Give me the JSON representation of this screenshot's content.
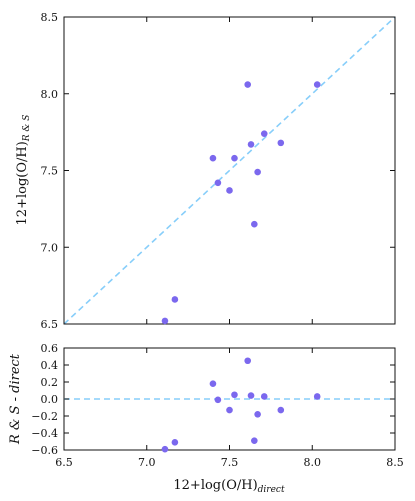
{
  "chart_data": [
    {
      "type": "scatter",
      "xlim": [
        6.5,
        8.5
      ],
      "ylim": [
        6.5,
        8.5
      ],
      "ylabel": "12+log(O/H)",
      "ylabel_sub": "R & S",
      "xticks_shown": false,
      "yticks": [
        "6.5",
        "7.0",
        "7.5",
        "8.0",
        "8.5"
      ],
      "grid": false,
      "reference_line": {
        "style": "dashed",
        "slope": 1,
        "intercept": 0,
        "color": "#87cefa"
      },
      "marker_color": "#7b68ee",
      "series": [
        {
          "points": [
            [
              7.11,
              6.52
            ],
            [
              7.17,
              6.66
            ],
            [
              7.4,
              7.58
            ],
            [
              7.43,
              7.42
            ],
            [
              7.5,
              7.37
            ],
            [
              7.53,
              7.58
            ],
            [
              7.61,
              8.06
            ],
            [
              7.63,
              7.67
            ],
            [
              7.65,
              7.15
            ],
            [
              7.67,
              7.49
            ],
            [
              7.71,
              7.74
            ],
            [
              7.81,
              7.68
            ],
            [
              8.03,
              8.06
            ]
          ]
        }
      ]
    },
    {
      "type": "scatter",
      "xlim": [
        6.5,
        8.5
      ],
      "ylim": [
        -0.6,
        0.6
      ],
      "xlabel": "12+log(O/H)",
      "xlabel_sub": "direct",
      "ylabel": "R & S - direct",
      "xticks": [
        "6.5",
        "7.0",
        "7.5",
        "8.0",
        "8.5"
      ],
      "yticks": [
        "−0.6",
        "−0.4",
        "−0.2",
        "0.0",
        "0.2",
        "0.4",
        "0.6"
      ],
      "grid": false,
      "reference_line": {
        "style": "dashed",
        "y": 0.0,
        "color": "#87cefa"
      },
      "marker_color": "#7b68ee",
      "series": [
        {
          "points": [
            [
              7.11,
              -0.59
            ],
            [
              7.17,
              -0.51
            ],
            [
              7.4,
              0.18
            ],
            [
              7.43,
              -0.01
            ],
            [
              7.5,
              -0.13
            ],
            [
              7.53,
              0.05
            ],
            [
              7.61,
              0.45
            ],
            [
              7.63,
              0.04
            ],
            [
              7.65,
              -0.49
            ],
            [
              7.67,
              -0.18
            ],
            [
              7.71,
              0.03
            ],
            [
              7.81,
              -0.13
            ],
            [
              8.03,
              0.03
            ]
          ]
        }
      ]
    }
  ]
}
